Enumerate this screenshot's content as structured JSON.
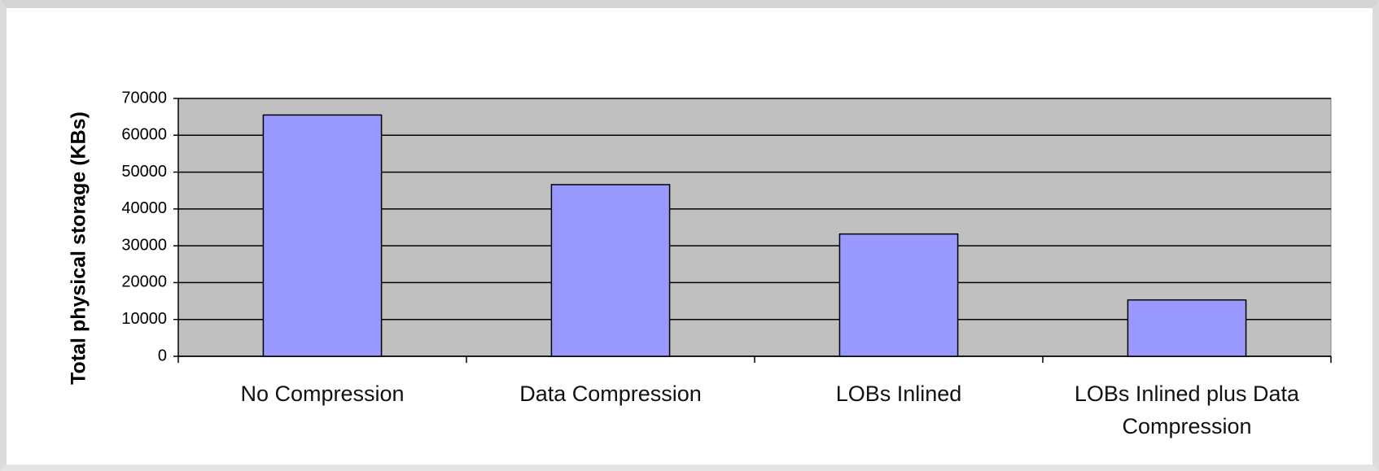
{
  "chart_data": {
    "type": "bar",
    "y_label": "Total physical storage (KBs)",
    "categories": [
      "No Compression",
      "Data Compression",
      "LOBs Inlined",
      "LOBs Inlined plus Data Compression"
    ],
    "values": [
      65500,
      46600,
      33200,
      15300
    ],
    "color": "#9999ff",
    "ylim": [
      0,
      70000
    ],
    "yticks": [
      0,
      10000,
      20000,
      30000,
      40000,
      50000,
      60000,
      70000
    ],
    "grid": true
  }
}
